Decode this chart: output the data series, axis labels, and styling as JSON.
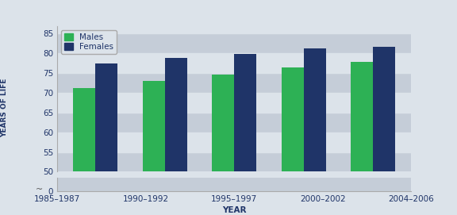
{
  "categories": [
    "1985–1987",
    "1990–1992",
    "1995–1997",
    "2000–2002",
    "2004–2006"
  ],
  "males": [
    71.2,
    73.0,
    74.7,
    76.5,
    77.9
  ],
  "females": [
    77.5,
    78.9,
    79.9,
    81.2,
    81.6
  ],
  "male_color": "#2db155",
  "female_color": "#1f3468",
  "background_color": "#dce3ea",
  "plot_bg_color_dark": "#c8d0da",
  "plot_bg_color_light": "#dce3ea",
  "xlabel": "YEAR",
  "ylabel": "YEARS OF LIFE",
  "ylim_main": [
    50,
    87
  ],
  "ylim_break": [
    0,
    3
  ],
  "yticks_main": [
    50,
    55,
    60,
    65,
    70,
    75,
    80,
    85
  ],
  "ytick_0": 0,
  "bar_width": 0.32,
  "legend_labels": [
    "Males",
    "Females"
  ],
  "axis_fontsize": 7.5,
  "tick_fontsize": 7.5,
  "legend_fontsize": 7.5,
  "ylabel_fontsize": 6.5,
  "label_color": "#1f3468",
  "stripe_dark": "#c5cdd8",
  "stripe_light": "#dce3ea"
}
